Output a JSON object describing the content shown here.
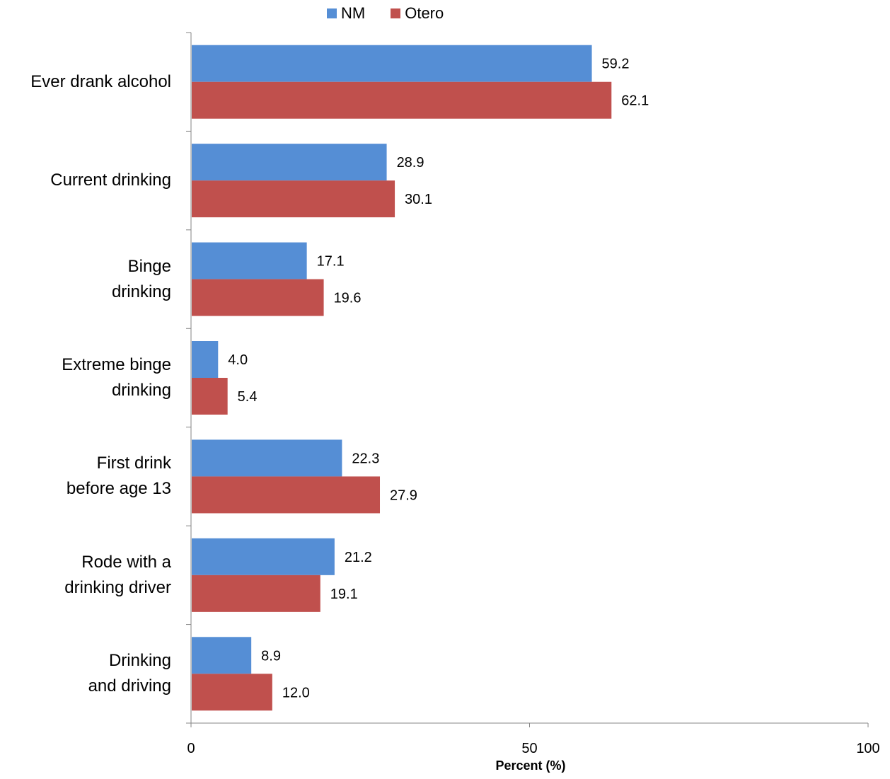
{
  "chart_data": {
    "type": "bar",
    "orientation": "horizontal",
    "categories": [
      "Ever drank  alcohol",
      "Current drinking",
      "Binge\ndrinking",
      "Extreme binge\ndrinking",
      "First drink\nbefore age 13",
      "Rode with a\ndrinking driver",
      "Drinking\nand driving"
    ],
    "series": [
      {
        "name": "NM",
        "color": "#558ED5",
        "values": [
          59.2,
          28.9,
          17.1,
          4.0,
          22.3,
          21.2,
          8.9
        ]
      },
      {
        "name": "Otero",
        "color": "#C0504D",
        "values": [
          62.1,
          30.1,
          19.6,
          5.4,
          27.9,
          19.1,
          12.0
        ]
      }
    ],
    "value_labels": {
      "NM": [
        "59.2",
        "28.9",
        "17.1",
        "4.0",
        "22.3",
        "21.2",
        "8.9"
      ],
      "Otero": [
        "62.1",
        "30.1",
        "19.6",
        "5.4",
        "27.9",
        "19.1",
        "12.0"
      ]
    },
    "xlabel": "Percent (%)",
    "ylabel": "",
    "title": "",
    "xlim": [
      0,
      100
    ],
    "xticks": [
      "0",
      "50",
      "100"
    ],
    "legend_position": "top-center",
    "grid": false
  }
}
